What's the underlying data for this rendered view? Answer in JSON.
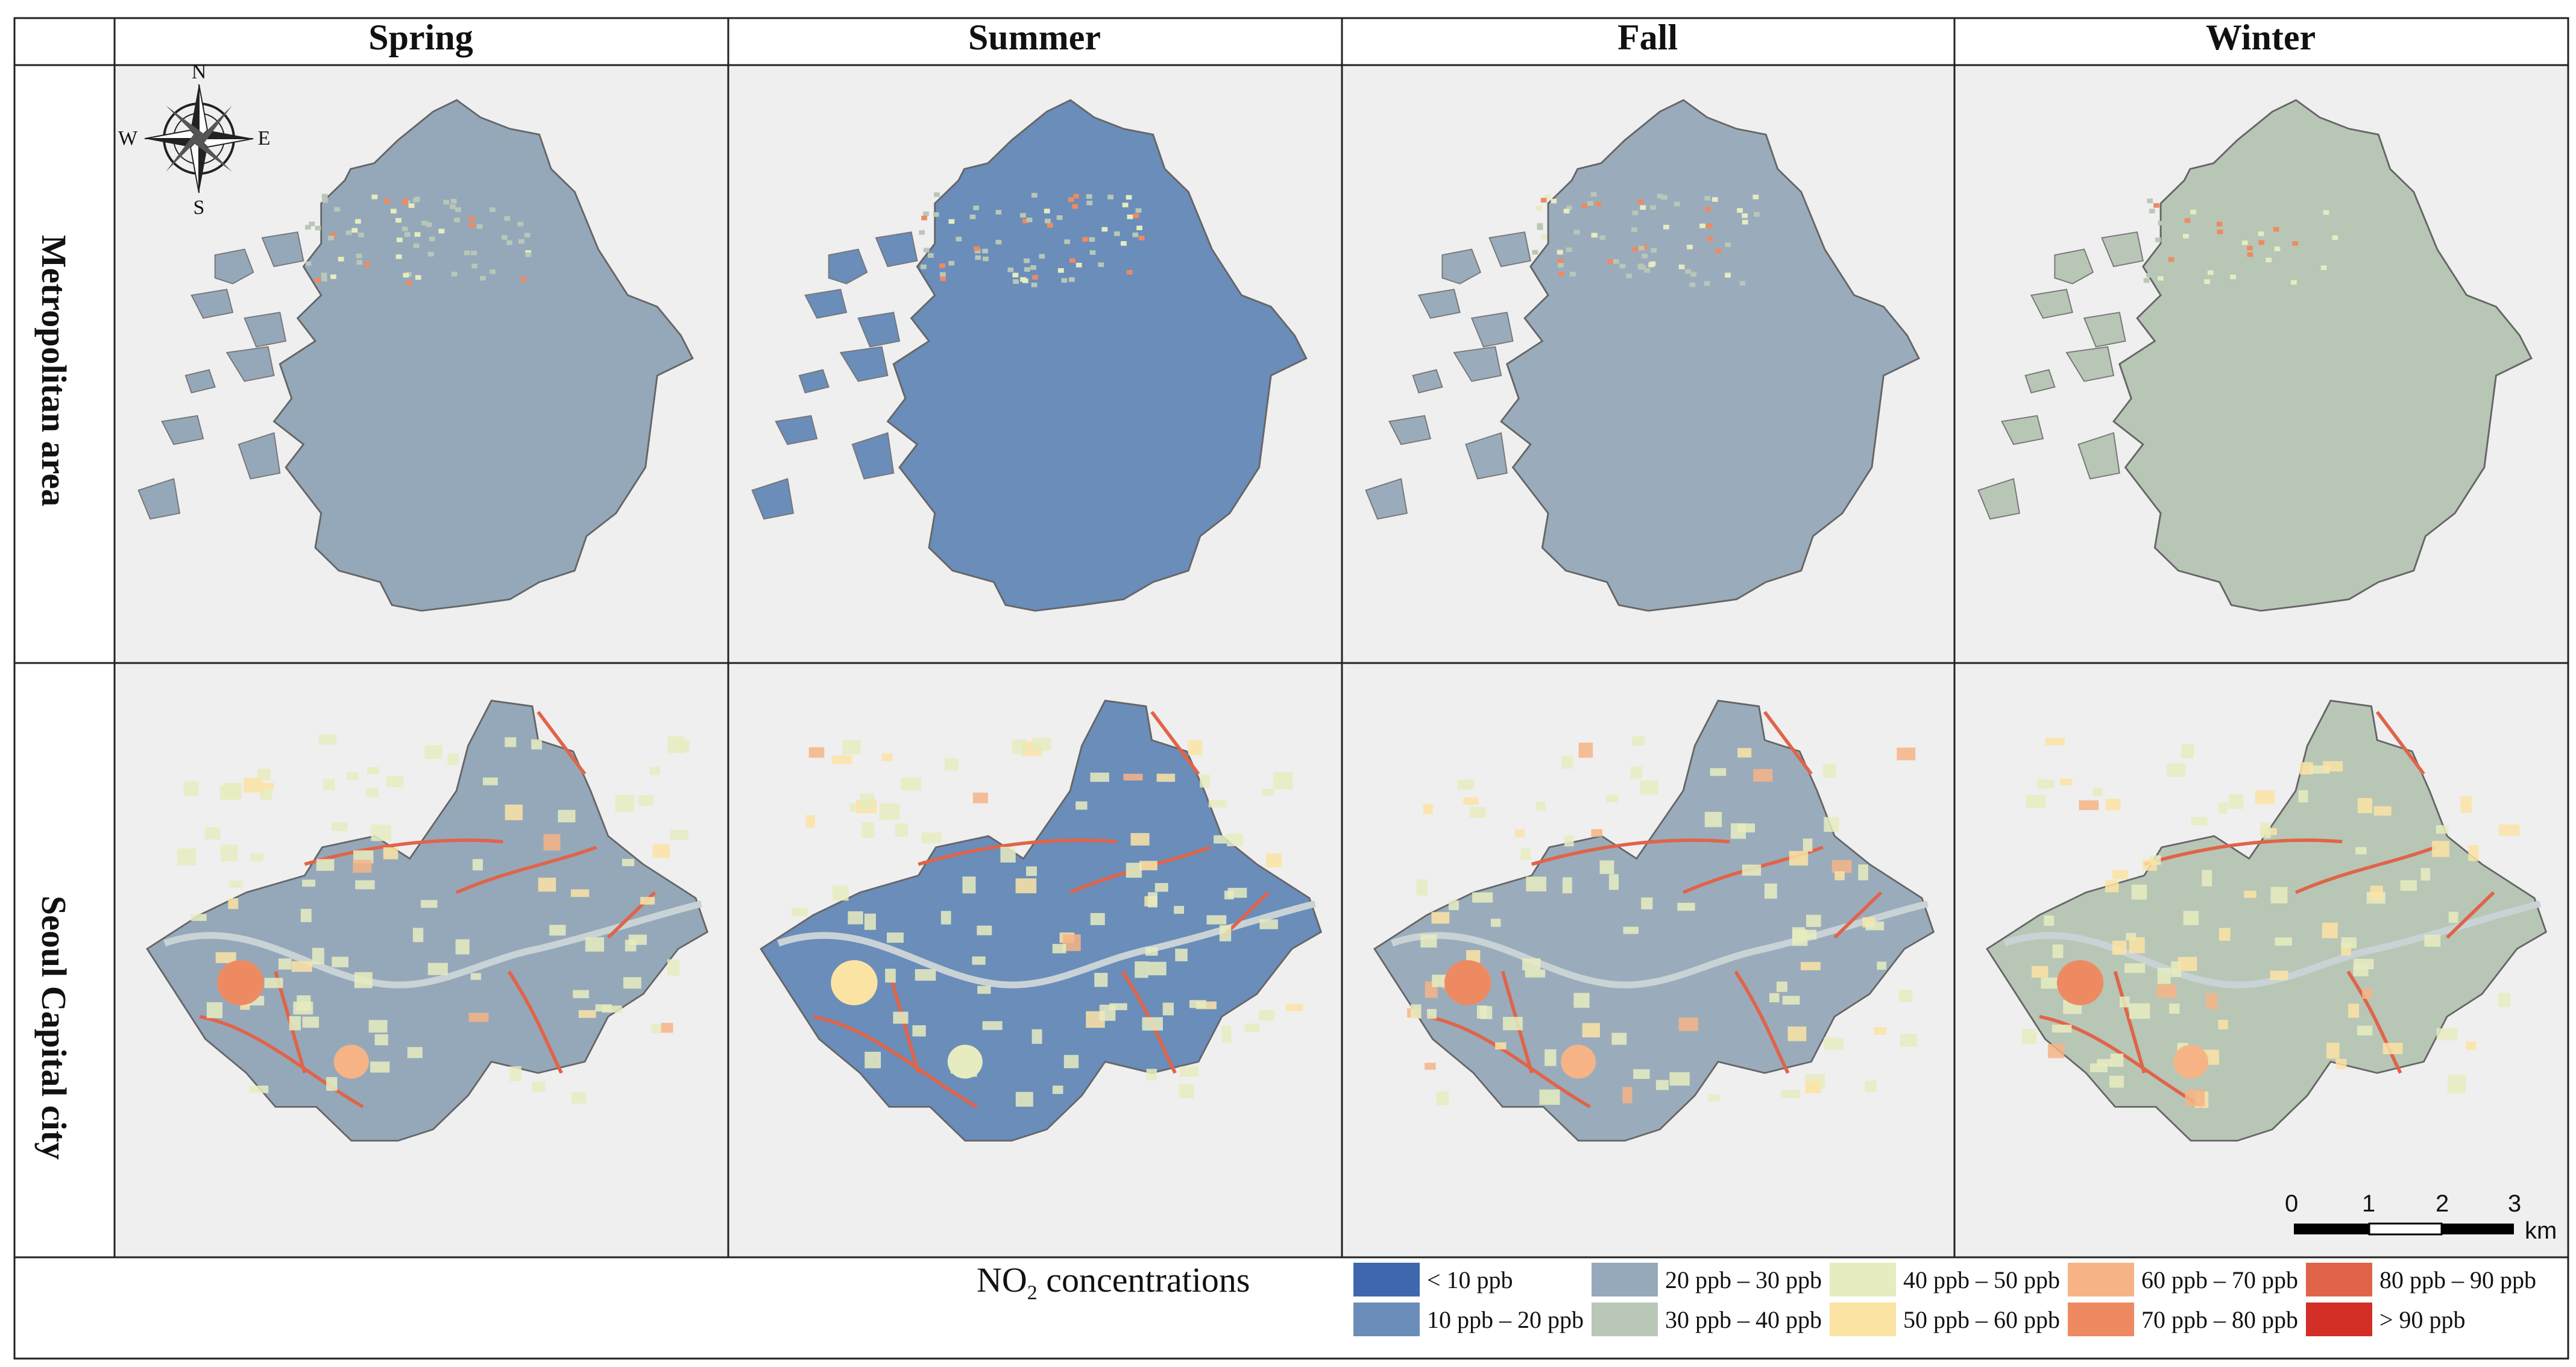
{
  "headers": {
    "seasons": [
      "Spring",
      "Summer",
      "Fall",
      "Winter"
    ],
    "rows": [
      "Metropolitan area",
      "Seoul Capital city"
    ]
  },
  "compass": {
    "labels": {
      "n": "N",
      "s": "S",
      "e": "E",
      "w": "W"
    },
    "icon": "compass-rose-icon"
  },
  "scale_bar": {
    "ticks": [
      "0",
      "1",
      "2",
      "3"
    ],
    "unit": "km"
  },
  "legend": {
    "title_prefix": "NO",
    "title_sub": "2",
    "title_suffix": " concentrations",
    "items": [
      {
        "label": "< 10 ppb",
        "color": "#3f67ad"
      },
      {
        "label": "10 ppb – 20 ppb",
        "color": "#6a8dba"
      },
      {
        "label": "20 ppb – 30 ppb",
        "color": "#96a9bb"
      },
      {
        "label": "30 ppb – 40 ppb",
        "color": "#b9c7b7"
      },
      {
        "label": "40 ppb – 50 ppb",
        "color": "#e6ecc0"
      },
      {
        "label": "50 ppb – 60 ppb",
        "color": "#fbe3a4"
      },
      {
        "label": "60 ppb – 70 ppb",
        "color": "#f6b486"
      },
      {
        "label": "70 ppb – 80 ppb",
        "color": "#ee8a62"
      },
      {
        "label": "80 ppb – 90 ppb",
        "color": "#e0644a"
      },
      {
        "label": "> 90 ppb",
        "color": "#d22f27"
      }
    ]
  },
  "panel_base_colors": {
    "Spring": "#95a8ba",
    "Summer": "#6a8dba",
    "Fall": "#9aacbb",
    "Winter": "#b8c6b6"
  },
  "panel_background": "#efefef"
}
